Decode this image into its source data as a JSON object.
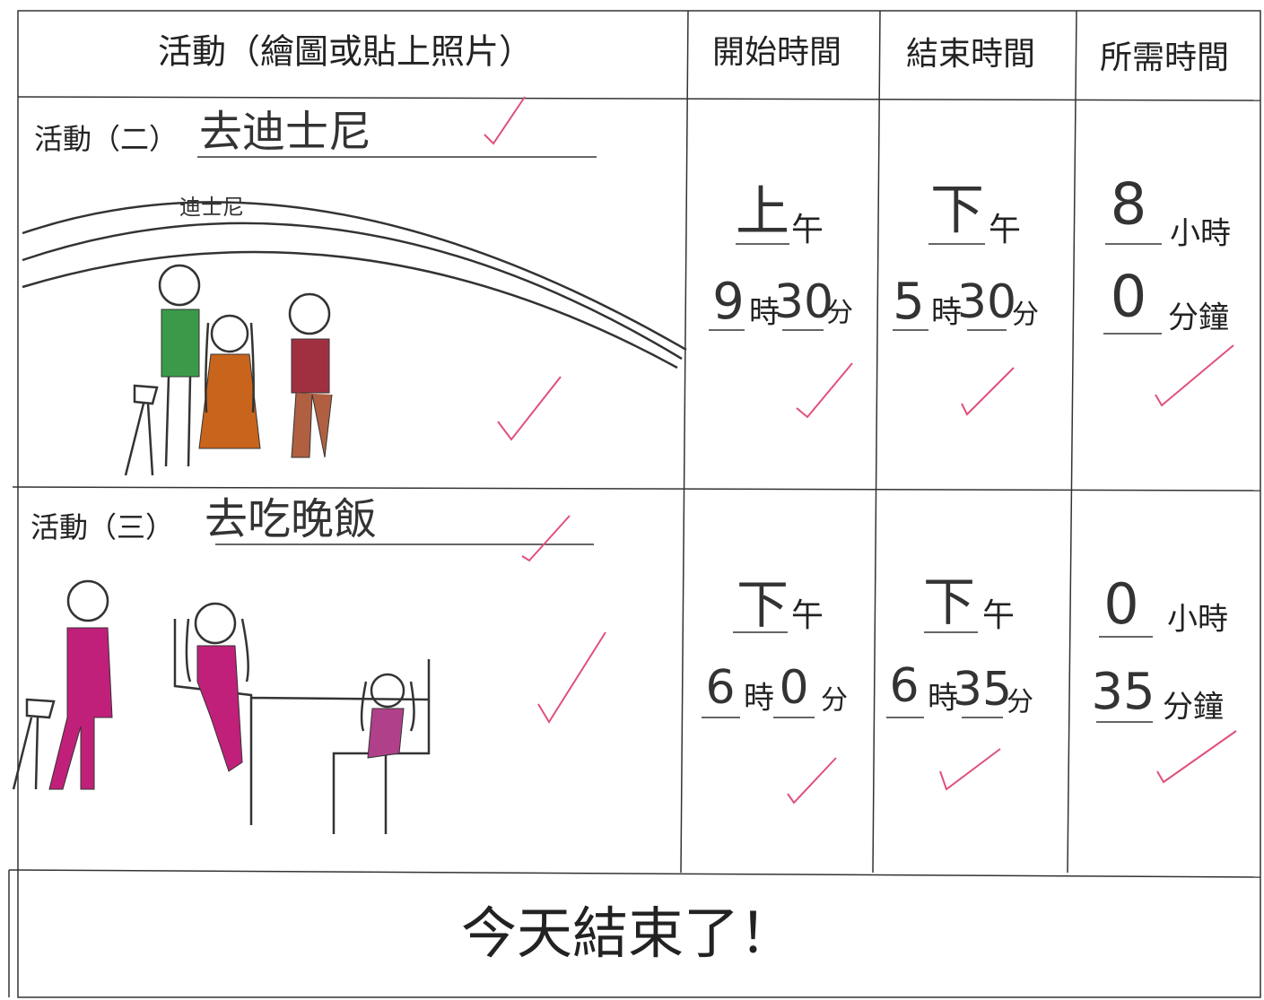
{
  "table": {
    "headers": [
      "活動（繪圖或貼上照片）",
      "開始時間",
      "結束時間",
      "所需時間"
    ],
    "rows": [
      {
        "label": "活動（二）",
        "activity": "去迪士尼",
        "drawing_label": "迪士尼",
        "start": {
          "period": "上",
          "period_suffix": "午",
          "hour": 9,
          "hour_unit": "時",
          "minute": 30,
          "minute_unit": "分"
        },
        "end": {
          "period": "下",
          "period_suffix": "午",
          "hour": 5,
          "hour_unit": "時",
          "minute": 30,
          "minute_unit": "分"
        },
        "duration": {
          "hours": 8,
          "hours_unit": "小時",
          "minutes": 0,
          "minutes_unit": "分鐘"
        }
      },
      {
        "label": "活動（三）",
        "activity": "去吃晚飯",
        "start": {
          "period": "下",
          "period_suffix": "午",
          "hour": 6,
          "hour_unit": "時",
          "minute": 0,
          "minute_unit": "分"
        },
        "end": {
          "period": "下",
          "period_suffix": "午",
          "hour": 6,
          "hour_unit": "時",
          "minute": 35,
          "minute_unit": "分"
        },
        "duration": {
          "hours": 0,
          "hours_unit": "小時",
          "minutes": 35,
          "minutes_unit": "分鐘"
        }
      }
    ]
  },
  "footer": "今天結束了！"
}
